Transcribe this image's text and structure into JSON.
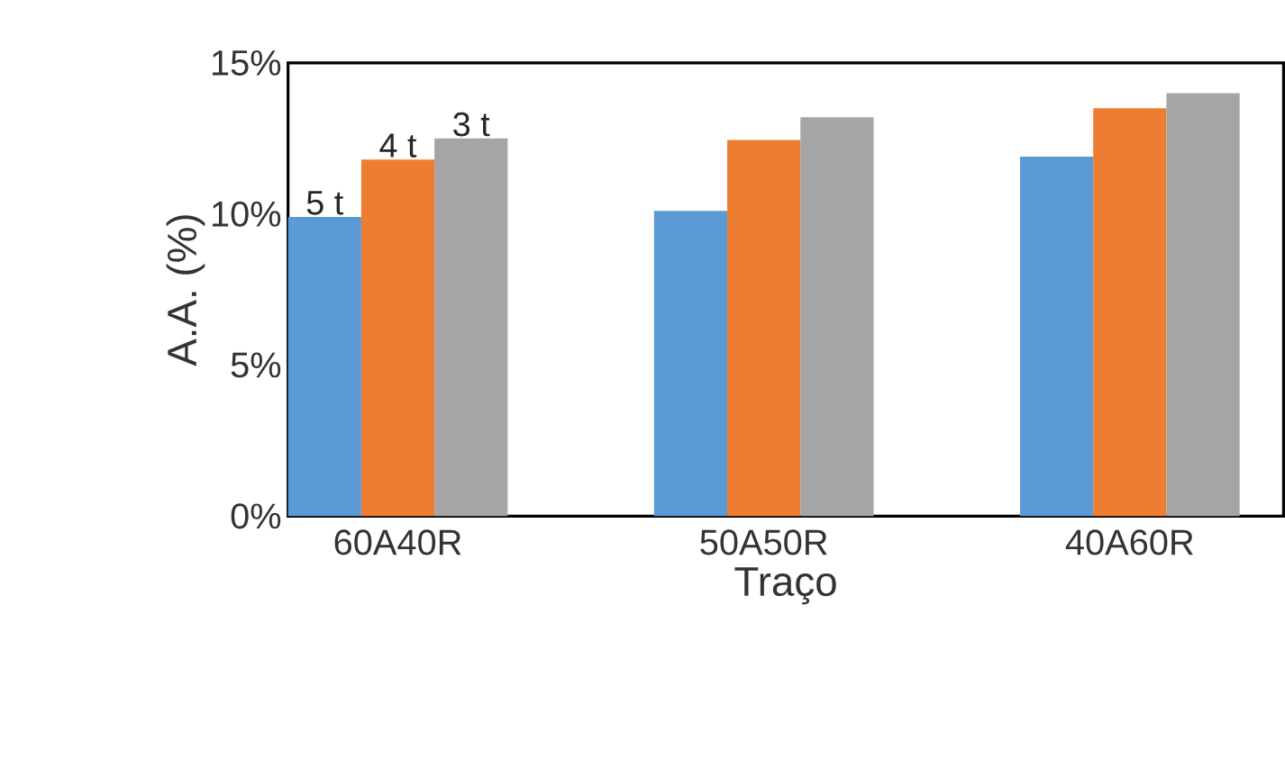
{
  "chart_data": {
    "type": "bar",
    "xlabel": "Traço",
    "ylabel": "A.A. (%)",
    "categories": [
      "60A40R",
      "50A50R",
      "40A60R"
    ],
    "series": [
      {
        "name": "5 t",
        "color": "#5b9bd5",
        "values": [
          9.9,
          10.1,
          11.9
        ]
      },
      {
        "name": "4 t",
        "color": "#ed7d31",
        "values": [
          11.8,
          12.45,
          13.5
        ]
      },
      {
        "name": "3 t",
        "color": "#a5a5a5",
        "values": [
          12.5,
          13.2,
          14.0
        ]
      }
    ],
    "ylim": [
      0,
      15
    ],
    "yticks": [
      {
        "value": 0,
        "label": "0%"
      },
      {
        "value": 5,
        "label": "5%"
      },
      {
        "value": 10,
        "label": "10%"
      },
      {
        "value": 15,
        "label": "15%"
      }
    ],
    "grid": false,
    "legend": false
  }
}
